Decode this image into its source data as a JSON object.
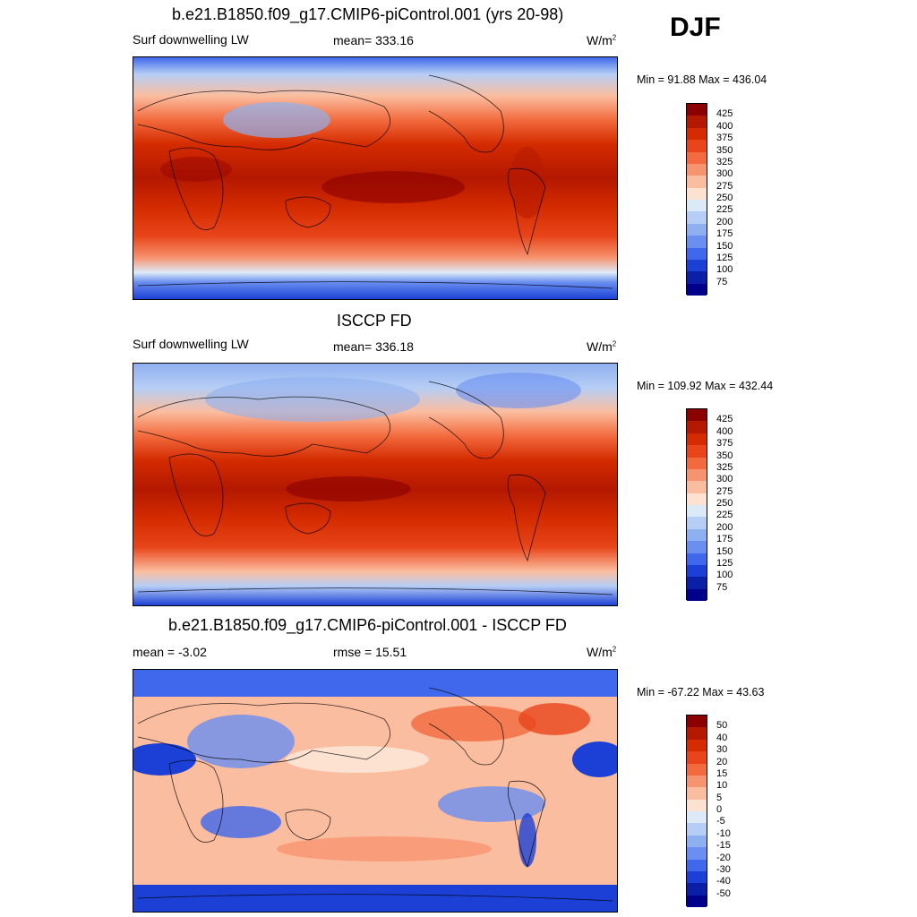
{
  "season": "DJF",
  "panel1": {
    "title": "b.e21.B1850.f09_g17.CMIP6-piControl.001 (yrs 20-98)",
    "variable": "Surf downwelling LW",
    "stat": "mean= 333.16",
    "units_base": "W/m",
    "units_exp": "2",
    "minmax": "Min =  91.88 Max = 436.04"
  },
  "panel2": {
    "title": "ISCCP FD",
    "variable": "Surf downwelling LW",
    "stat": "mean= 336.18",
    "units_base": "W/m",
    "units_exp": "2",
    "minmax": "Min = 109.92 Max = 432.44"
  },
  "panel3": {
    "title": "b.e21.B1850.f09_g17.CMIP6-piControl.001 - ISCCP FD",
    "stat_left": "mean =  -3.02",
    "stat_mid": "rmse =  15.51",
    "units_base": "W/m",
    "units_exp": "2",
    "minmax": "Min = -67.22 Max =  43.63"
  },
  "colorbar_abs": {
    "labels": [
      "425",
      "400",
      "375",
      "350",
      "325",
      "300",
      "275",
      "250",
      "225",
      "200",
      "175",
      "150",
      "125",
      "100",
      "75"
    ],
    "colors": [
      "#8b0000",
      "#b31800",
      "#d42b00",
      "#e8451a",
      "#f26a3d",
      "#f79470",
      "#fbbd9f",
      "#fde2d2",
      "#dceaf8",
      "#b6cef5",
      "#8fb0f0",
      "#6a8ff0",
      "#4068ec",
      "#1c40d6",
      "#0a1ea6",
      "#00008b"
    ]
  },
  "colorbar_diff": {
    "labels": [
      "50",
      "40",
      "30",
      "20",
      "15",
      "10",
      "5",
      "0",
      "-5",
      "-10",
      "-15",
      "-20",
      "-30",
      "-40",
      "-50"
    ],
    "colors": [
      "#8b0000",
      "#b31800",
      "#d42b00",
      "#e8451a",
      "#f26a3d",
      "#f79470",
      "#fbbd9f",
      "#fde2d2",
      "#dceaf8",
      "#b6cef5",
      "#8fb0f0",
      "#6a8ff0",
      "#4068ec",
      "#1c40d6",
      "#0a1ea6",
      "#00008b"
    ]
  }
}
